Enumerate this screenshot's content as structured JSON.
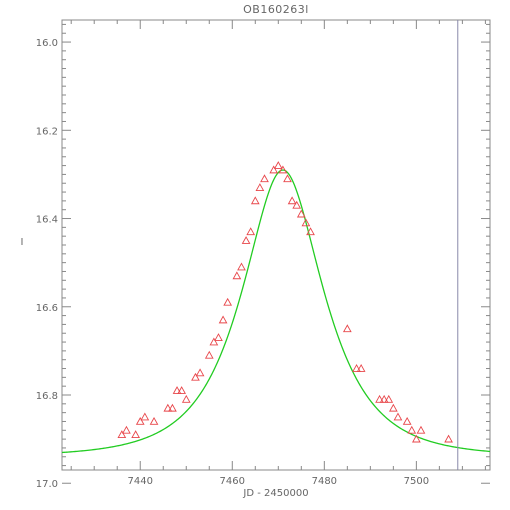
{
  "chart_data": {
    "type": "scatter",
    "title": "OB160263l",
    "xlabel": "JD - 2450000",
    "ylabel": "I",
    "xlim": [
      7423,
      7516
    ],
    "ylim": [
      16.97,
      15.95
    ],
    "y_reversed": true,
    "x_ticks": [
      7440,
      7460,
      7480,
      7500
    ],
    "x_tick_labels": [
      "7440",
      "7460",
      "7480",
      "7500"
    ],
    "y_ticks": [
      16.0,
      16.2,
      16.4,
      16.6,
      16.8,
      17.0
    ],
    "y_tick_labels": [
      "16.0",
      "16.2",
      "16.4",
      "16.6",
      "16.8",
      "17.0"
    ],
    "vertical_line_x": 7509,
    "colors": {
      "points": "#e8464a",
      "model": "#22cc22",
      "axes": "#888888",
      "marker_line": "#8888aa"
    },
    "series": [
      {
        "kind": "points",
        "marker": "triangle-open",
        "x": [
          7436,
          7437,
          7439,
          7440,
          7441,
          7443,
          7446,
          7447,
          7448,
          7449,
          7450,
          7452,
          7453,
          7455,
          7456,
          7457,
          7458,
          7459,
          7461,
          7462,
          7463,
          7464,
          7465,
          7466,
          7467,
          7469,
          7470,
          7471,
          7472,
          7473,
          7474,
          7475,
          7476,
          7477,
          7485,
          7487,
          7488,
          7492,
          7493,
          7494,
          7495,
          7496,
          7498,
          7499,
          7500,
          7501,
          7507
        ],
        "y": [
          16.89,
          16.88,
          16.89,
          16.86,
          16.85,
          16.86,
          16.83,
          16.83,
          16.79,
          16.79,
          16.81,
          16.76,
          16.75,
          16.71,
          16.68,
          16.67,
          16.63,
          16.59,
          16.53,
          16.51,
          16.45,
          16.43,
          16.36,
          16.33,
          16.31,
          16.29,
          16.28,
          16.29,
          16.31,
          16.36,
          16.37,
          16.39,
          16.41,
          16.43,
          16.65,
          16.74,
          16.74,
          16.81,
          16.81,
          16.81,
          16.83,
          16.85,
          16.86,
          16.88,
          16.9,
          16.88,
          16.9
        ]
      },
      {
        "kind": "model",
        "t0": 7471,
        "base_mag": 16.94,
        "peak_mag": 16.29,
        "tE": 13.5
      }
    ]
  }
}
